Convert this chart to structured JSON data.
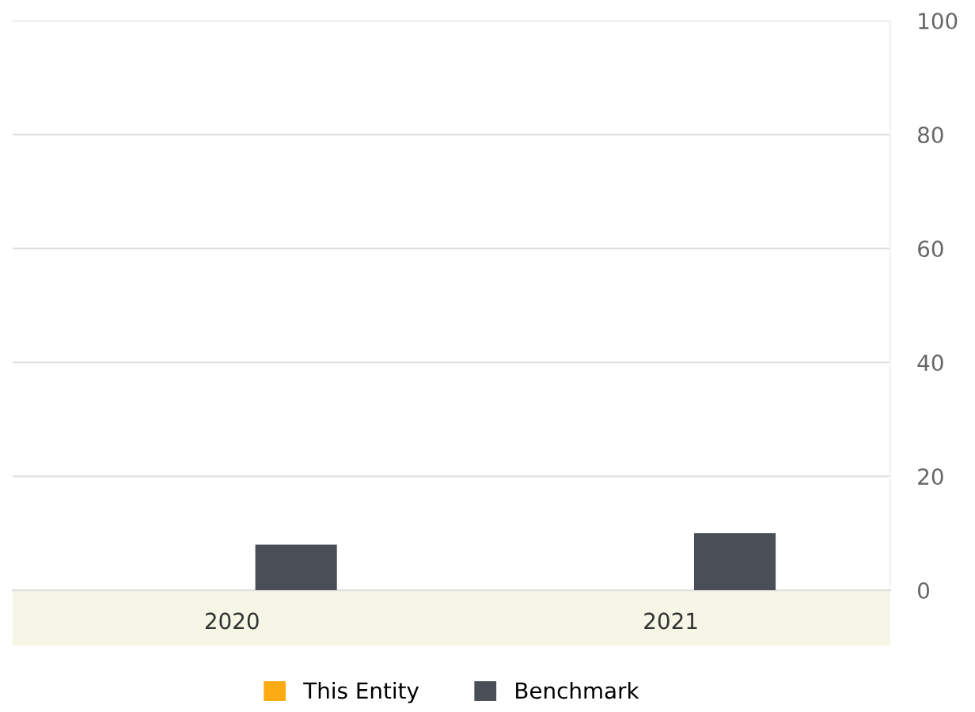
{
  "chart_data": {
    "type": "bar",
    "categories": [
      "2020",
      "2021"
    ],
    "series": [
      {
        "name": "This Entity",
        "color": "#fcac12",
        "values": [
          null,
          null
        ]
      },
      {
        "name": "Benchmark",
        "color": "#4a4f57",
        "values": [
          8,
          10
        ]
      }
    ],
    "ylim": [
      0,
      100
    ],
    "yticks": [
      0,
      20,
      40,
      60,
      80,
      100
    ],
    "grid": "y",
    "legend": "bottom"
  }
}
